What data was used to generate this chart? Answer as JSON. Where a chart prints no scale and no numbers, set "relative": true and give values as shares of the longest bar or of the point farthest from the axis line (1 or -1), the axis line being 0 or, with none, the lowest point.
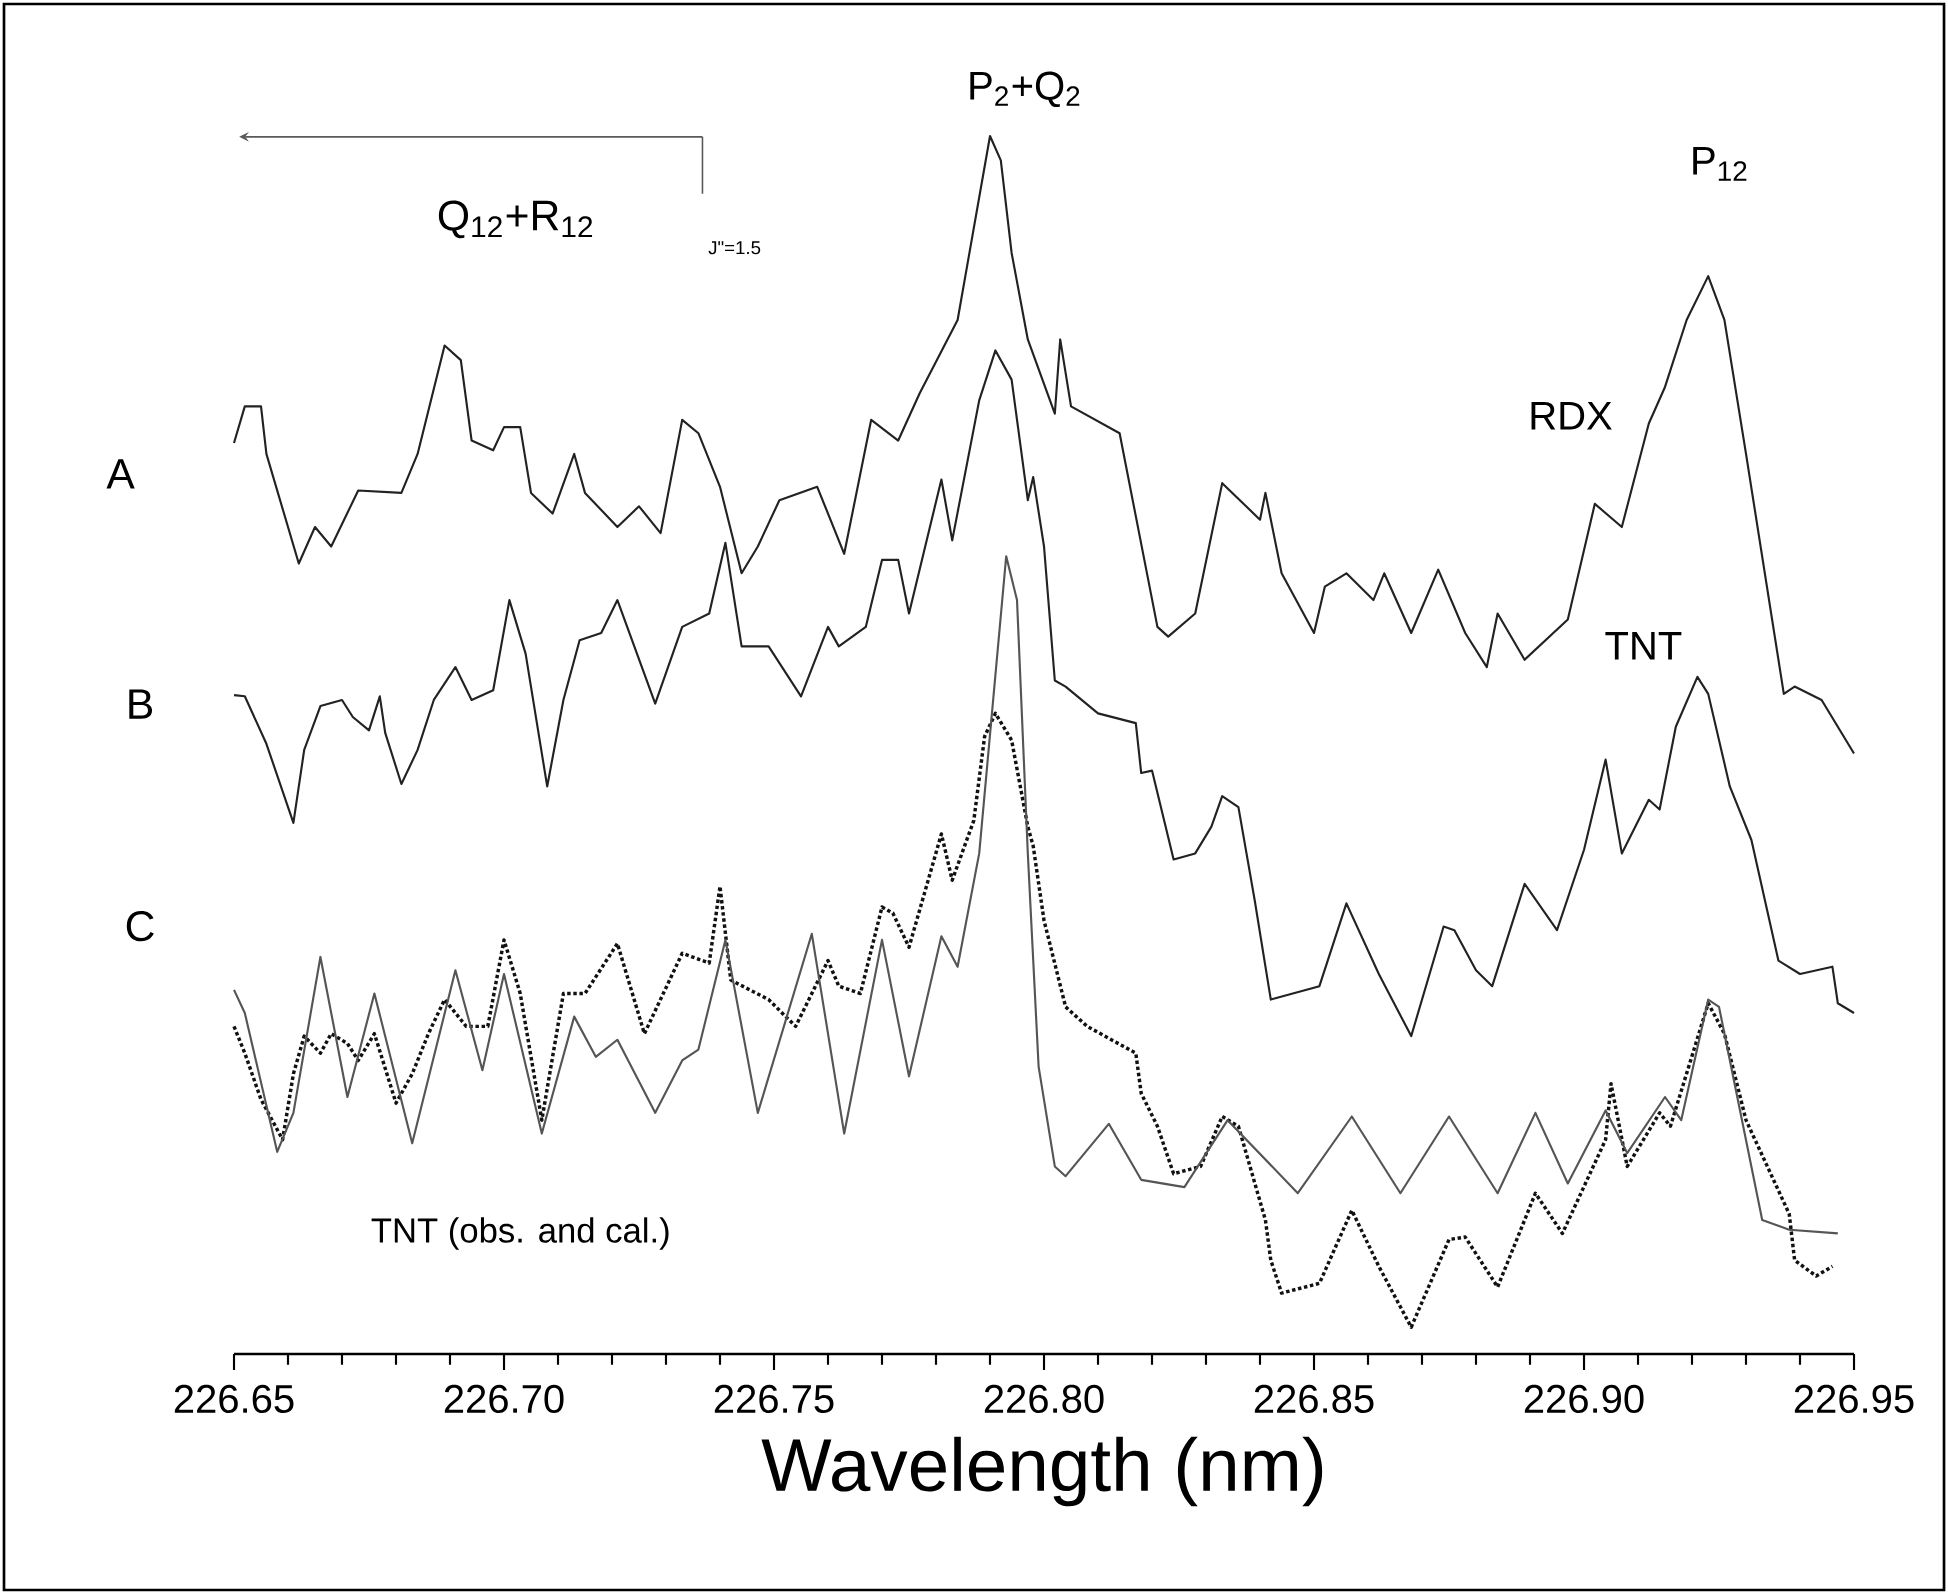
{
  "chart_data": {
    "type": "line",
    "relative": true,
    "xlabel": "Wavelength (nm)",
    "xlim": [
      226.65,
      226.95
    ],
    "xticks": [
      {
        "value": 226.65,
        "label": "226.65"
      },
      {
        "value": 226.7,
        "label": "226.70"
      },
      {
        "value": 226.75,
        "label": "226.75"
      },
      {
        "value": 226.8,
        "label": "226.80"
      },
      {
        "value": 226.85,
        "label": "226.85"
      },
      {
        "value": 226.9,
        "label": "226.90"
      },
      {
        "value": 226.95,
        "label": "226.95"
      }
    ],
    "annotations": [
      "A",
      "B",
      "C",
      "TNT (obs. and cal.)",
      "P$_{2}$+Q$_{2}$",
      "Q$_{12}$+R$_{12}$",
      "P$_{12}$",
      "J\"=1.5"
    ],
    "series": [
      {
        "name": "RDX",
        "color": "#222222",
        "x": [
          226.65,
          226.652,
          226.655,
          226.656,
          226.662,
          226.665,
          226.668,
          226.673,
          226.681,
          226.684,
          226.689,
          226.692,
          226.694,
          226.698,
          226.7,
          226.703,
          226.705,
          226.709,
          226.713,
          226.715,
          226.721,
          226.725,
          226.729,
          226.733,
          226.736,
          226.74,
          226.744,
          226.747,
          226.751,
          226.758,
          226.763,
          226.768,
          226.773,
          226.777,
          226.784,
          226.79,
          226.792,
          226.794,
          226.797,
          226.802,
          226.803,
          226.805,
          226.814,
          226.821,
          226.823,
          226.828,
          226.833,
          226.84,
          226.841,
          226.844,
          226.85,
          226.852,
          226.856,
          226.861,
          226.863,
          226.868,
          226.873,
          226.878,
          226.882,
          226.884,
          226.889,
          226.897,
          226.902,
          226.907,
          226.912,
          226.915,
          226.919,
          226.923,
          226.926,
          226.93,
          226.937,
          226.939,
          226.944,
          226.95
        ],
        "values": [
          0.748,
          0.778,
          0.778,
          0.739,
          0.649,
          0.679,
          0.663,
          0.709,
          0.707,
          0.739,
          0.828,
          0.816,
          0.75,
          0.742,
          0.761,
          0.761,
          0.707,
          0.69,
          0.739,
          0.707,
          0.679,
          0.696,
          0.674,
          0.767,
          0.756,
          0.712,
          0.641,
          0.663,
          0.701,
          0.712,
          0.657,
          0.767,
          0.75,
          0.789,
          0.849,
          1.0,
          0.98,
          0.904,
          0.833,
          0.772,
          0.833,
          0.778,
          0.756,
          0.597,
          0.589,
          0.608,
          0.715,
          0.685,
          0.707,
          0.641,
          0.592,
          0.63,
          0.641,
          0.619,
          0.641,
          0.592,
          0.644,
          0.592,
          0.564,
          0.608,
          0.57,
          0.603,
          0.698,
          0.679,
          0.764,
          0.794,
          0.849,
          0.885,
          0.849,
          0.739,
          0.542,
          0.548,
          0.537,
          0.493
        ]
      },
      {
        "name": "TNT",
        "color": "#222222",
        "x": [
          226.65,
          226.652,
          226.656,
          226.661,
          226.663,
          226.666,
          226.67,
          226.672,
          226.675,
          226.677,
          226.678,
          226.681,
          226.684,
          226.687,
          226.691,
          226.694,
          226.698,
          226.701,
          226.704,
          226.708,
          226.711,
          226.714,
          226.718,
          226.721,
          226.728,
          226.733,
          226.738,
          226.741,
          226.744,
          226.749,
          226.755,
          226.76,
          226.762,
          226.767,
          226.77,
          226.773,
          226.775,
          226.781,
          226.783,
          226.788,
          226.791,
          226.794,
          226.797,
          226.798,
          226.8,
          226.802,
          226.804,
          226.81,
          226.817,
          226.818,
          226.82,
          226.824,
          226.828,
          226.831,
          226.833,
          226.836,
          226.839,
          226.842,
          226.851,
          226.856,
          226.862,
          226.868,
          226.874,
          226.876,
          226.88,
          226.883,
          226.889,
          226.895,
          226.9,
          226.904,
          226.907,
          226.912,
          226.914,
          226.917,
          226.921,
          226.923,
          226.927,
          226.931,
          226.936,
          226.94,
          226.946,
          226.947,
          226.95
        ],
        "values": [
          0.541,
          0.54,
          0.501,
          0.436,
          0.496,
          0.532,
          0.537,
          0.523,
          0.512,
          0.54,
          0.51,
          0.468,
          0.496,
          0.537,
          0.564,
          0.537,
          0.545,
          0.619,
          0.575,
          0.466,
          0.537,
          0.586,
          0.592,
          0.619,
          0.534,
          0.597,
          0.608,
          0.666,
          0.581,
          0.581,
          0.54,
          0.597,
          0.581,
          0.597,
          0.652,
          0.652,
          0.608,
          0.718,
          0.668,
          0.783,
          0.824,
          0.8,
          0.701,
          0.72,
          0.663,
          0.553,
          0.548,
          0.526,
          0.518,
          0.477,
          0.479,
          0.406,
          0.411,
          0.433,
          0.458,
          0.449,
          0.373,
          0.291,
          0.302,
          0.37,
          0.312,
          0.261,
          0.351,
          0.348,
          0.315,
          0.302,
          0.386,
          0.348,
          0.414,
          0.488,
          0.411,
          0.455,
          0.447,
          0.515,
          0.556,
          0.542,
          0.466,
          0.422,
          0.323,
          0.312,
          0.318,
          0.288,
          0.28
        ]
      },
      {
        "color": "#111111",
        "line_style": "dotted",
        "x": [
          226.65,
          226.652,
          226.655,
          226.659,
          226.661,
          226.663,
          226.666,
          226.668,
          226.671,
          226.673,
          226.676,
          226.68,
          226.683,
          226.686,
          226.689,
          226.693,
          226.697,
          226.7,
          226.703,
          226.707,
          226.711,
          226.715,
          226.721,
          226.726,
          226.733,
          226.738,
          226.74,
          226.742,
          226.749,
          226.754,
          226.76,
          226.762,
          226.766,
          226.77,
          226.772,
          226.775,
          226.781,
          226.783,
          226.787,
          226.789,
          226.791,
          226.794,
          226.797,
          226.798,
          226.8,
          226.804,
          226.808,
          226.817,
          226.818,
          226.821,
          226.824,
          226.829,
          226.833,
          226.836,
          226.841,
          226.842,
          226.844,
          226.851,
          226.857,
          226.862,
          226.868,
          226.875,
          226.878,
          226.884,
          226.891,
          226.896,
          226.904,
          226.905,
          226.908,
          226.914,
          226.916,
          226.923,
          226.926,
          226.93,
          226.938,
          226.939,
          226.943,
          226.946
        ],
        "values": [
          0.269,
          0.247,
          0.209,
          0.176,
          0.23,
          0.261,
          0.247,
          0.263,
          0.255,
          0.241,
          0.263,
          0.206,
          0.23,
          0.263,
          0.291,
          0.269,
          0.269,
          0.34,
          0.296,
          0.192,
          0.296,
          0.296,
          0.337,
          0.263,
          0.329,
          0.321,
          0.384,
          0.307,
          0.291,
          0.269,
          0.323,
          0.302,
          0.296,
          0.367,
          0.362,
          0.334,
          0.427,
          0.389,
          0.438,
          0.507,
          0.526,
          0.504,
          0.433,
          0.417,
          0.356,
          0.285,
          0.269,
          0.247,
          0.214,
          0.187,
          0.148,
          0.154,
          0.195,
          0.187,
          0.11,
          0.077,
          0.05,
          0.058,
          0.118,
          0.072,
          0.022,
          0.094,
          0.096,
          0.055,
          0.132,
          0.099,
          0.176,
          0.222,
          0.154,
          0.198,
          0.187,
          0.288,
          0.263,
          0.192,
          0.115,
          0.077,
          0.064,
          0.072
        ]
      },
      {
        "color": "#555555",
        "x": [
          226.65,
          226.652,
          226.658,
          226.661,
          226.666,
          226.671,
          226.676,
          226.683,
          226.691,
          226.696,
          226.7,
          226.707,
          226.713,
          226.717,
          226.721,
          226.728,
          226.733,
          226.736,
          226.741,
          226.747,
          226.757,
          226.763,
          226.77,
          226.775,
          226.781,
          226.784,
          226.788,
          226.793,
          226.795,
          226.797,
          226.799,
          226.802,
          226.804,
          226.812,
          226.818,
          226.826,
          226.834,
          226.847,
          226.857,
          226.866,
          226.875,
          226.884,
          226.891,
          226.897,
          226.904,
          226.908,
          226.915,
          226.918,
          226.923,
          226.925,
          226.933,
          226.938,
          226.947
        ],
        "values": [
          0.299,
          0.28,
          0.166,
          0.198,
          0.326,
          0.211,
          0.296,
          0.173,
          0.315,
          0.233,
          0.312,
          0.181,
          0.277,
          0.244,
          0.258,
          0.198,
          0.241,
          0.25,
          0.34,
          0.198,
          0.345,
          0.181,
          0.34,
          0.228,
          0.343,
          0.318,
          0.411,
          0.655,
          0.619,
          0.411,
          0.236,
          0.154,
          0.146,
          0.189,
          0.143,
          0.137,
          0.192,
          0.132,
          0.195,
          0.132,
          0.195,
          0.132,
          0.198,
          0.14,
          0.2,
          0.165,
          0.211,
          0.192,
          0.291,
          0.285,
          0.11,
          0.102,
          0.099
        ]
      }
    ]
  }
}
